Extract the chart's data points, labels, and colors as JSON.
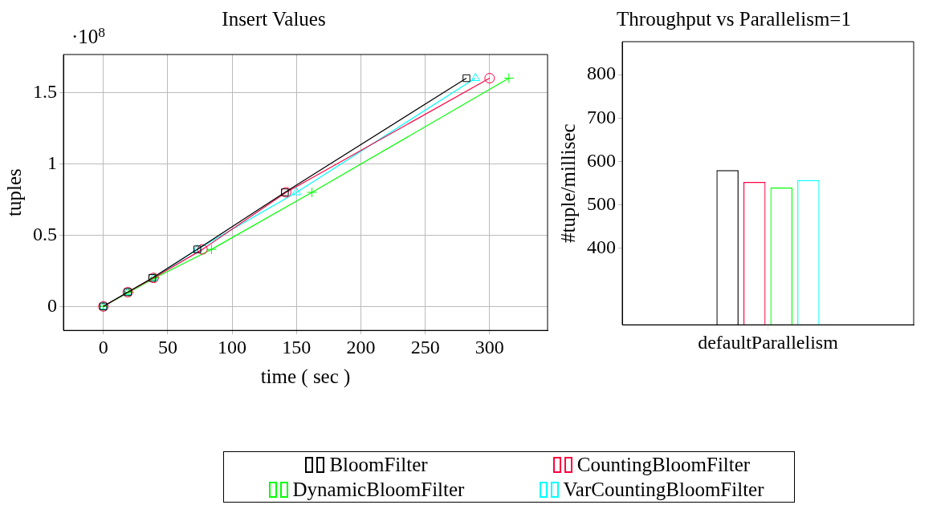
{
  "chart_data": [
    {
      "type": "line",
      "title": "Insert Values",
      "xlabel": "time ( sec )",
      "ylabel": "tuples",
      "annotations": [
        "·10$^{8}$"
      ],
      "xlim": [
        -31,
        345
      ],
      "xticks": [
        0,
        50,
        100,
        150,
        200,
        250,
        300
      ],
      "ylim": [
        -0.168,
        1.766
      ],
      "yticks": [
        0,
        0.5,
        1,
        1.5
      ],
      "grid": true,
      "legend": "bottom",
      "line_style": "solid",
      "series": [
        {
          "name": "BloomFilter",
          "color": "#000000",
          "marker": "square",
          "x": [
            0,
            19,
            38,
            73,
            141,
            282
          ],
          "values": [
            0,
            0.1,
            0.2,
            0.4,
            0.8,
            1.6
          ]
        },
        {
          "name": "CountingBloomFilter",
          "color": "#ff0040",
          "marker": "circle",
          "x": [
            0,
            19,
            39,
            77,
            142,
            300
          ],
          "values": [
            0,
            0.1,
            0.2,
            0.4,
            0.8,
            1.6
          ]
        },
        {
          "name": "DynamicBloomFilter",
          "color": "#00ff00",
          "marker": "cross",
          "x": [
            0,
            20,
            40,
            84,
            162,
            315
          ],
          "values": [
            0,
            0.1,
            0.2,
            0.4,
            0.8,
            1.6
          ]
        },
        {
          "name": "VarCountingBloomFilter",
          "color": "#00ffff",
          "marker": "triangle",
          "x": [
            0,
            19,
            39,
            73,
            150,
            289
          ],
          "values": [
            0,
            0.1,
            0.2,
            0.4,
            0.8,
            1.6
          ]
        }
      ]
    },
    {
      "type": "bar",
      "title": "Throughput vs Parallelism=1",
      "ylabel": "#tuple/millisec",
      "categories": [
        "defaultParallelism"
      ],
      "ylim": [
        224,
        876
      ],
      "yticks": [
        400,
        500,
        600,
        700,
        800
      ],
      "grid": false,
      "series": [
        {
          "color": "#000000",
          "values": [
            580
          ]
        },
        {
          "color": "#ff0040",
          "values": [
            553
          ]
        },
        {
          "color": "#00ff00",
          "values": [
            540
          ]
        },
        {
          "color": "#00ffff",
          "values": [
            557
          ]
        }
      ]
    }
  ]
}
